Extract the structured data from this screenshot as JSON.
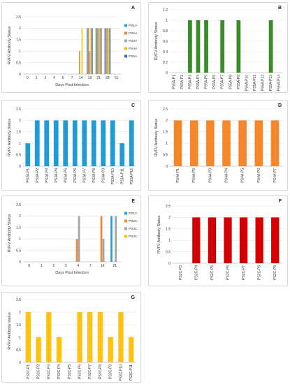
{
  "chart_data": [
    {
      "panel": "A",
      "type": "bar",
      "ylabel": "RVFV Antibody Status",
      "xlabel": "Days Post Infection",
      "categories": [
        "0",
        "1",
        "3",
        "4",
        "6",
        "7",
        "14",
        "18",
        "21",
        "28",
        "61"
      ],
      "ylim": [
        0,
        2.5
      ],
      "yticks": [
        "0",
        "0.5",
        "1",
        "1.5",
        "2",
        "2.5"
      ],
      "grid": true,
      "legend_position": "right",
      "series": [
        {
          "name": "PS1A",
          "color": "#2e9fd8",
          "values": [
            0,
            0,
            0,
            0,
            0,
            0,
            0,
            2,
            2,
            2,
            0
          ]
        },
        {
          "name": "PS2A",
          "color": "#f0862a",
          "values": [
            0,
            0,
            0,
            0,
            0,
            0,
            1,
            2,
            2,
            2,
            0
          ]
        },
        {
          "name": "PS3A",
          "color": "#a5a5a5",
          "values": [
            0,
            0,
            0,
            0,
            0,
            0,
            0,
            1,
            2,
            2,
            0
          ]
        },
        {
          "name": "PS4A",
          "color": "#ffc000",
          "values": [
            0,
            0,
            0,
            0,
            0,
            0,
            2,
            2,
            2,
            2,
            0
          ]
        },
        {
          "name": "PS5A",
          "color": "#3a6fbf",
          "values": [
            0,
            0,
            0,
            0,
            0,
            0,
            0,
            2,
            2,
            2,
            0
          ]
        }
      ]
    },
    {
      "panel": "B",
      "type": "bar",
      "ylabel": "RVFV Antibody Status",
      "categories": [
        "PS5A-P1",
        "PS5A-P2",
        "PS5A-P3",
        "PS5A-P4",
        "PS5A-P5",
        "PS5A-P6",
        "PS5A-P7",
        "PS5A-P8",
        "PS5A-P9",
        "PS5A-P10",
        "PS5A-P11",
        "PS5A-P12",
        "PS5A-P13",
        "PS5A-P14"
      ],
      "values": [
        0,
        0,
        1,
        1,
        1,
        0,
        1,
        0,
        1,
        0,
        0,
        0,
        1,
        0
      ],
      "ylim": [
        0,
        1.2
      ],
      "yticks": [
        "0",
        "0.2",
        "0.4",
        "0.6",
        "0.8",
        "1",
        "1.2"
      ],
      "color": "#3b8b2c",
      "grid": true
    },
    {
      "panel": "C",
      "type": "bar",
      "ylabel": "RVFV Antibody Status",
      "categories": [
        "PS3A-P1",
        "PS3A-P2",
        "PS3A-P3",
        "PS3A-P4",
        "PS3A-P5",
        "PS3A-P6",
        "PS3A-P7",
        "PS3A-P8",
        "PS3A-P9",
        "PS3A-P10",
        "PS3A-P11",
        "PS3A-P12"
      ],
      "values": [
        1,
        2,
        2,
        2,
        2,
        2,
        2,
        2,
        2,
        2,
        1,
        2
      ],
      "ylim": [
        0,
        2.5
      ],
      "yticks": [
        "0",
        "0.5",
        "1",
        "1.5",
        "2",
        "2.5"
      ],
      "color": "#1f9bd6",
      "grid": true
    },
    {
      "panel": "D",
      "type": "bar",
      "ylabel": "RVFV Antibody Status",
      "categories": [
        "PS4A-P1",
        "PS4A-P2",
        "PS4A-P3",
        "PS4A-P4",
        "PS4A-P5",
        "PS4A-P6",
        "PS4A-P7"
      ],
      "values": [
        2,
        2,
        2,
        2,
        2,
        2,
        2
      ],
      "ylim": [
        0,
        2.5
      ],
      "yticks": [
        "0",
        "0.5",
        "1",
        "1.5",
        "2",
        "2.5"
      ],
      "color": "#f5872a",
      "grid": true
    },
    {
      "panel": "E",
      "type": "bar",
      "ylabel": "RVFV Antibody Status",
      "xlabel": "Days Post Infection",
      "categories": [
        "0",
        "1",
        "2",
        "3",
        "4",
        "7",
        "14",
        "21"
      ],
      "ylim": [
        0,
        2.5
      ],
      "yticks": [
        "0",
        "0.5",
        "1",
        "1.5",
        "2",
        "2.5"
      ],
      "grid": true,
      "legend_position": "right",
      "series": [
        {
          "name": "PS1C",
          "color": "#2e9fd8",
          "values": [
            0,
            0,
            0,
            0,
            0,
            0,
            0,
            2
          ]
        },
        {
          "name": "PS2C",
          "color": "#f0862a",
          "values": [
            0,
            0,
            0,
            0,
            1,
            0,
            2,
            0
          ]
        },
        {
          "name": "PS3C",
          "color": "#a5a5a5",
          "values": [
            0,
            0,
            0,
            0,
            2,
            0,
            1,
            2
          ]
        },
        {
          "name": "PS4C",
          "color": "#ffc000",
          "values": [
            0,
            0,
            0,
            0,
            0,
            0,
            0,
            0
          ]
        }
      ]
    },
    {
      "panel": "F",
      "type": "bar",
      "ylabel": "RVFV Antibody Status",
      "categories": [
        "PS2C-P3",
        "PS2C-P4",
        "PS2C-P5",
        "PS2C-P6",
        "PS2C-P7",
        "PS2C-P8",
        "PS2C-P9"
      ],
      "values": [
        0,
        2,
        2,
        2,
        2,
        2,
        2
      ],
      "ylim": [
        0,
        2.5
      ],
      "yticks": [
        "0",
        "0.5",
        "1",
        "1.5",
        "2",
        "2.5"
      ],
      "color": "#d40000",
      "grid": true
    },
    {
      "panel": "G",
      "type": "bar",
      "ylabel": "RVFV Antibody status",
      "categories": [
        "PS3C-P1",
        "PS3C-P2",
        "PS3C-P3",
        "PS3C-P4",
        "PS3C-P5",
        "PS3C-P6",
        "PS3C-P7",
        "PS3C-P8",
        "PS3C-P9",
        "PS3C-P10",
        "PS3C-P11"
      ],
      "values": [
        2,
        1,
        2,
        1,
        0,
        2,
        2,
        2,
        1,
        2,
        1
      ],
      "ylim": [
        0,
        2.5
      ],
      "yticks": [
        "0",
        "0.5",
        "1",
        "1.5",
        "2",
        "2.5"
      ],
      "color": "#ffc20e",
      "grid": true
    }
  ]
}
